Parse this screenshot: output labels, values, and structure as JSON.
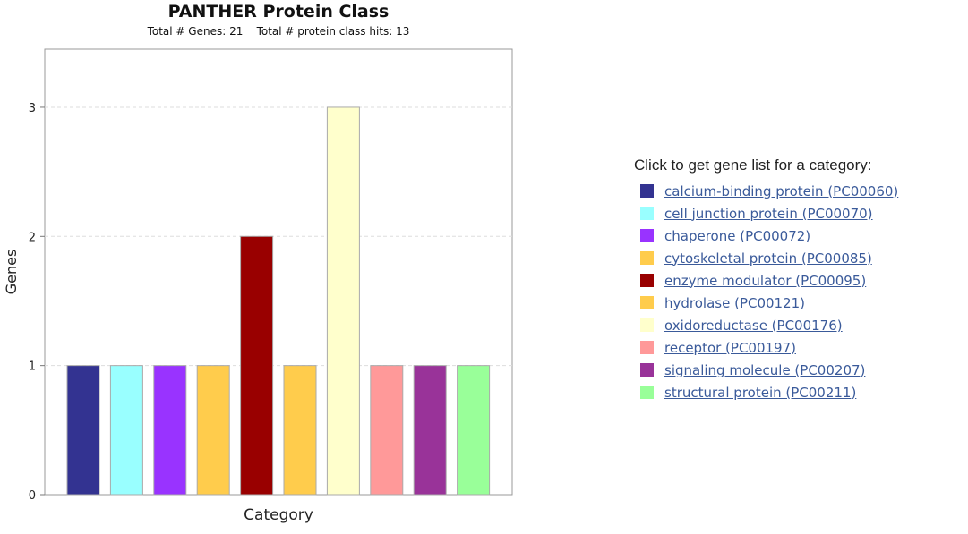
{
  "chart_data": {
    "type": "bar",
    "title": "PANTHER Protein Class",
    "subtitle": "Total # Genes: 21    Total # protein class hits: 13",
    "xlabel": "Category",
    "ylabel": "Genes",
    "ylim": [
      0,
      3.45
    ],
    "yticks": [
      0,
      1,
      2,
      3
    ],
    "grid": true,
    "legend_position": "right",
    "categories": [
      "calcium-binding protein (PC00060)",
      "cell junction protein (PC00070)",
      "chaperone (PC00072)",
      "cytoskeletal protein (PC00085)",
      "enzyme modulator (PC00095)",
      "hydrolase (PC00121)",
      "oxidoreductase (PC00176)",
      "receptor (PC00197)",
      "signaling molecule (PC00207)",
      "structural protein (PC00211)"
    ],
    "values": [
      1,
      1,
      1,
      1,
      2,
      1,
      3,
      1,
      1,
      1
    ],
    "colors": [
      "#333391",
      "#99ffff",
      "#9933ff",
      "#ffcc4c",
      "#990000",
      "#ffcc4c",
      "#ffffcc",
      "#ff9999",
      "#993399",
      "#99ff99"
    ]
  },
  "legend": {
    "heading": "Click to get gene list for a category:"
  }
}
